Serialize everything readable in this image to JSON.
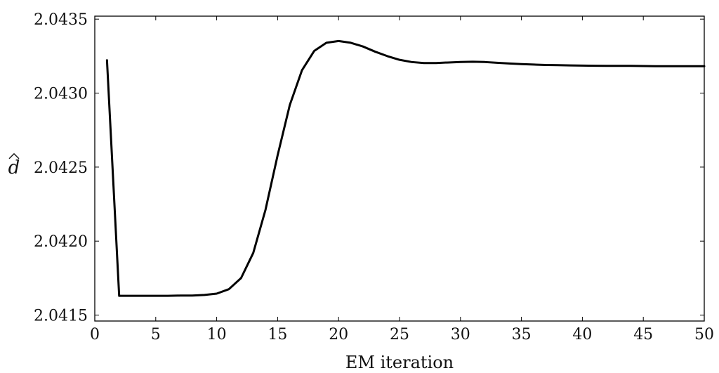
{
  "chart_data": {
    "type": "line",
    "title": "",
    "xlabel": "EM iteration",
    "ylabel": "d",
    "ylabel_accent": "hat",
    "xlim": [
      0,
      50
    ],
    "ylim": [
      2.04146,
      2.04352
    ],
    "xticks": [
      0,
      5,
      10,
      15,
      20,
      25,
      30,
      35,
      40,
      45,
      50
    ],
    "xtick_labels": [
      "0",
      "5",
      "10",
      "15",
      "20",
      "25",
      "30",
      "35",
      "40",
      "45",
      "50"
    ],
    "yticks": [
      2.0415,
      2.042,
      2.0425,
      2.043,
      2.0435
    ],
    "ytick_labels": [
      "2.0415",
      "2.0420",
      "2.0425",
      "2.0430",
      "2.0435"
    ],
    "grid": false,
    "line_color": "#000000",
    "series": [
      {
        "x": [
          1,
          2,
          3,
          4,
          5,
          6,
          7,
          8,
          9,
          10,
          11,
          12,
          13,
          14,
          15,
          16,
          17,
          18,
          19,
          20,
          21,
          22,
          23,
          24,
          25,
          26,
          27,
          28,
          29,
          30,
          31,
          32,
          33,
          34,
          35,
          36,
          37,
          38,
          39,
          40,
          41,
          42,
          43,
          44,
          45,
          46,
          47,
          48,
          49,
          50
        ],
        "values": [
          2.043222,
          2.04163,
          2.04163,
          2.04163,
          2.04163,
          2.04163,
          2.041632,
          2.041632,
          2.041636,
          2.041645,
          2.041675,
          2.04175,
          2.04192,
          2.04221,
          2.04258,
          2.04292,
          2.043155,
          2.043285,
          2.04334,
          2.043352,
          2.04334,
          2.043315,
          2.04328,
          2.04325,
          2.043225,
          2.04321,
          2.043203,
          2.043203,
          2.043207,
          2.04321,
          2.043212,
          2.04321,
          2.043205,
          2.0432,
          2.043196,
          2.043193,
          2.04319,
          2.043189,
          2.043187,
          2.043186,
          2.043185,
          2.043184,
          2.043184,
          2.043184,
          2.043183,
          2.043182,
          2.043182,
          2.043182,
          2.043182,
          2.043182
        ]
      }
    ]
  }
}
